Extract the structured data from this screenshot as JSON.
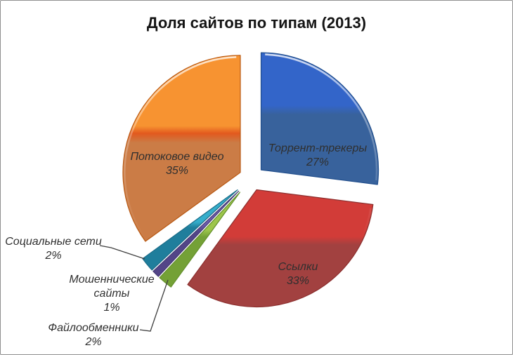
{
  "frame": {
    "border_color": "#8f8f8f",
    "background": "#ffffff"
  },
  "chart_data": {
    "type": "pie",
    "title": "Доля сайтов по типам (2013)",
    "start_angle_deg": 0,
    "direction": "clockwise",
    "exploded": true,
    "legend_position": "none",
    "title_color": "#141414",
    "label_text_color": "#2f2f2f",
    "callout_line_color": "#3f3f3f",
    "slices": [
      {
        "key": "torrent",
        "label": "Торрент-трекеры",
        "value_pct": 27,
        "pct_label": "27%",
        "color_top": "#3365c9",
        "color_bottom": "#38629c",
        "stroke": "#1f4d8c",
        "label_placement": "inside"
      },
      {
        "key": "links",
        "label": "Ссылки",
        "value_pct": 33,
        "pct_label": "33%",
        "color_top": "#d23c38",
        "color_bottom": "#a24140",
        "stroke": "#8c2f2e",
        "label_placement": "inside"
      },
      {
        "key": "fileshare",
        "label": "Файлообменники",
        "value_pct": 2,
        "pct_label": "2%",
        "color_top": "#9dc54b",
        "color_bottom": "#74a136",
        "stroke": "#64902c",
        "label_placement": "outside-callout"
      },
      {
        "key": "fraud",
        "label": "Мошеннические сайты",
        "value_pct": 1,
        "pct_label": "1%",
        "color_top": "#6c5cad",
        "color_bottom": "#534588",
        "stroke": "#453a74",
        "label_placement": "outside"
      },
      {
        "key": "social",
        "label": "Социальные сети",
        "value_pct": 2,
        "pct_label": "2%",
        "color_top": "#35aecb",
        "color_bottom": "#1f7e9c",
        "stroke": "#1a6c88",
        "label_placement": "outside-callout"
      },
      {
        "key": "video",
        "label": "Потоковое видео",
        "value_pct": 35,
        "pct_label": "35%",
        "color_top": "#f79331",
        "color_mid": "#e2591e",
        "color_bottom": "#cb7c46",
        "stroke": "#b85812",
        "label_placement": "inside"
      }
    ]
  }
}
